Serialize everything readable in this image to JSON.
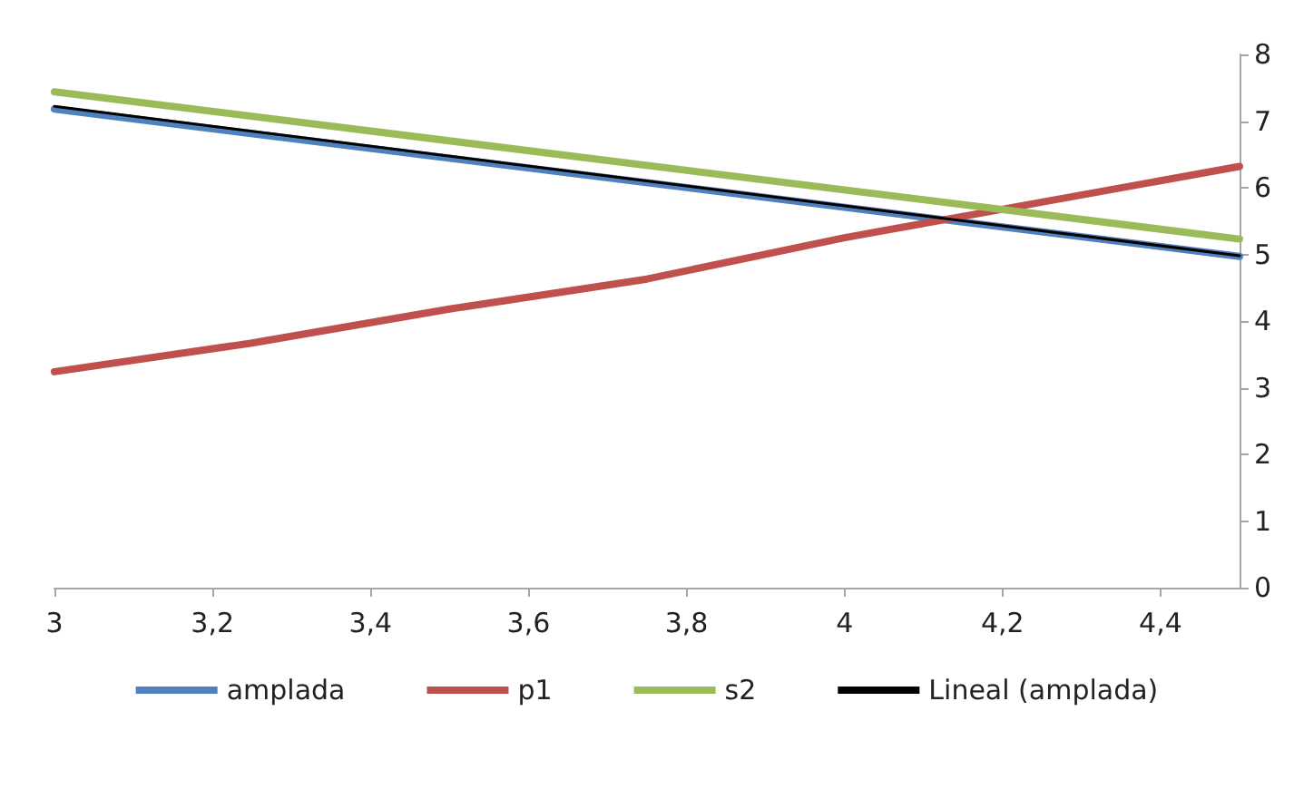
{
  "chart_data": {
    "type": "line",
    "xlim": [
      3,
      4.5
    ],
    "xticks": [
      3,
      {
        "value": 3.2,
        "label": "3,2"
      },
      {
        "value": 3.4,
        "label": "3,4"
      },
      {
        "value": 3.6,
        "label": "3,6"
      },
      {
        "value": 3.8,
        "label": "3,8"
      },
      4,
      {
        "value": 4.2,
        "label": "4,2"
      },
      {
        "value": 4.4,
        "label": "4,4"
      }
    ],
    "ylim": [
      0,
      8
    ],
    "yticks": [
      0,
      1,
      2,
      3,
      4,
      5,
      6,
      7,
      8
    ],
    "grid": false,
    "legend": "bottom",
    "marker": "none",
    "line_style": "solid",
    "series": [
      {
        "name": "amplada",
        "color": "#4f81bd",
        "x": [
          3,
          4.5
        ],
        "values": [
          7.18,
          4.97
        ]
      },
      {
        "name": "p1",
        "color": "#c0504d",
        "x": [
          3,
          3.25,
          3.5,
          3.75,
          4,
          4.5
        ],
        "values": [
          3.24,
          3.67,
          4.18,
          4.63,
          5.25,
          6.32
        ]
      },
      {
        "name": "s2",
        "color": "#9bbb59",
        "x": [
          3,
          4.5
        ],
        "values": [
          7.44,
          5.23
        ]
      },
      {
        "name": "Lineal (amplada)",
        "color": "#000000",
        "x": [
          3,
          4.5
        ],
        "values": [
          7.22,
          4.98
        ]
      }
    ]
  }
}
